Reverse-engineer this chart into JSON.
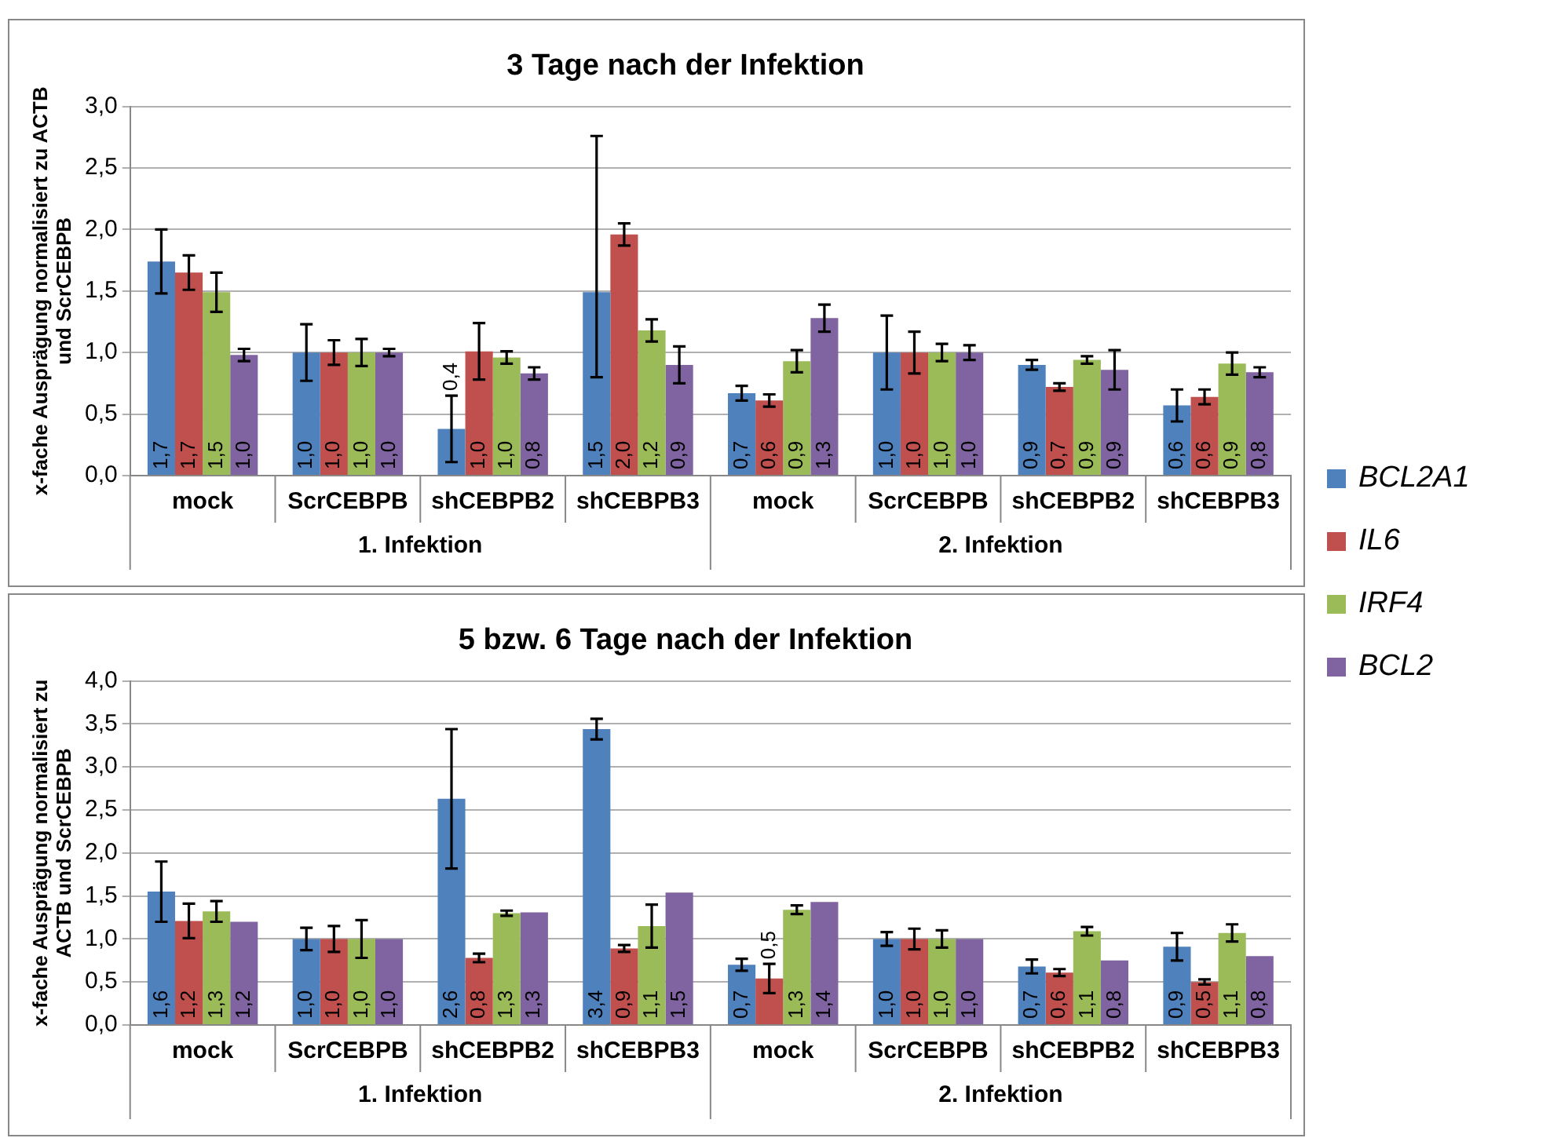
{
  "chart_data": [
    {
      "type": "bar",
      "title": "3 Tage nach der Infektion",
      "ylabel": "x-fache Ausprägung normalisiert zu ACTB und ScrCEBPB",
      "categories": [
        "mock",
        "ScrCEBPB",
        "shCEBPB2",
        "shCEBPB3",
        "mock",
        "ScrCEBPB",
        "shCEBPB2",
        "shCEBPB3"
      ],
      "annotations": [
        "1. Infektion",
        "2. Infektion"
      ],
      "ylim": [
        0,
        3
      ],
      "yticks": [
        {
          "value": 0,
          "label": "0,0"
        },
        {
          "value": 0.5,
          "label": "0,5"
        },
        {
          "value": 1,
          "label": "1,0"
        },
        {
          "value": 1.5,
          "label": "1,5"
        },
        {
          "value": 2,
          "label": "2,0"
        },
        {
          "value": 2.5,
          "label": "2,5"
        },
        {
          "value": 3,
          "label": "3,0"
        }
      ],
      "grid": "y",
      "legend": "right",
      "series": [
        {
          "name": "BCL2A1",
          "color": "#4f81bd",
          "values": [
            1.74,
            1.0,
            0.38,
            1.49,
            0.67,
            1.0,
            0.9,
            0.57
          ],
          "errors": [
            0.26,
            0.23,
            0.27,
            [
              0.8,
              2.76
            ],
            0.06,
            0.3,
            0.04,
            0.13
          ],
          "value_labels": [
            "1,7",
            "1,0",
            "0,4",
            "1,5",
            "0,7",
            "1,0",
            "0,9",
            "0,6"
          ]
        },
        {
          "name": "IL6",
          "color": "#c0504d",
          "values": [
            1.65,
            1.0,
            1.01,
            1.96,
            0.61,
            1.0,
            0.72,
            0.64
          ],
          "errors": [
            0.14,
            0.1,
            0.23,
            0.09,
            0.05,
            0.17,
            0.03,
            0.06
          ],
          "value_labels": [
            "1,7",
            "1,0",
            "1,0",
            "2,0",
            "0,6",
            "1,0",
            "0,7",
            "0,6"
          ]
        },
        {
          "name": "IRF4",
          "color": "#9bbb59",
          "values": [
            1.49,
            1.0,
            0.96,
            1.18,
            0.93,
            1.0,
            0.94,
            0.91
          ],
          "errors": [
            0.16,
            0.11,
            0.05,
            0.09,
            0.09,
            0.07,
            0.03,
            0.09
          ],
          "value_labels": [
            "1,5",
            "1,0",
            "1,0",
            "1,2",
            "0,9",
            "1,0",
            "0,9",
            "0,9"
          ]
        },
        {
          "name": "BCL2",
          "color": "#8064a2",
          "values": [
            0.98,
            1.0,
            0.83,
            0.9,
            1.28,
            1.0,
            0.86,
            0.84
          ],
          "errors": [
            0.05,
            0.03,
            0.05,
            0.15,
            0.11,
            0.06,
            0.16,
            0.04
          ],
          "value_labels": [
            "1,0",
            "1,0",
            "0,8",
            "0,9",
            "1,3",
            "1,0",
            "0,9",
            "0,8"
          ]
        }
      ]
    },
    {
      "type": "bar",
      "title": "5 bzw. 6 Tage nach der Infektion",
      "ylabel": "x-fache Ausprägung normalisiert zu ACTB und ScrCEBPB",
      "categories": [
        "mock",
        "ScrCEBPB",
        "shCEBPB2",
        "shCEBPB3",
        "mock",
        "ScrCEBPB",
        "shCEBPB2",
        "shCEBPB3"
      ],
      "annotations": [
        "1. Infektion",
        "2. Infektion"
      ],
      "ylim": [
        0,
        4
      ],
      "yticks": [
        {
          "value": 0,
          "label": "0,0"
        },
        {
          "value": 0.5,
          "label": "0,5"
        },
        {
          "value": 1,
          "label": "1,0"
        },
        {
          "value": 1.5,
          "label": "1,5"
        },
        {
          "value": 2,
          "label": "2,0"
        },
        {
          "value": 2.5,
          "label": "2,5"
        },
        {
          "value": 3,
          "label": "3,0"
        },
        {
          "value": 3.5,
          "label": "3,5"
        },
        {
          "value": 4,
          "label": "4,0"
        }
      ],
      "grid": "y",
      "series": [
        {
          "color": "#4f81bd",
          "values": [
            1.55,
            1.0,
            2.63,
            3.44,
            0.7,
            1.0,
            0.68,
            0.91
          ],
          "errors": [
            0.35,
            0.13,
            0.81,
            0.12,
            0.07,
            0.08,
            0.08,
            0.16
          ],
          "value_labels": [
            "1,6",
            "1,0",
            "2,6",
            "3,4",
            "0,7",
            "1,0",
            "0,7",
            "0,9"
          ]
        },
        {
          "color": "#c0504d",
          "values": [
            1.21,
            1.0,
            0.78,
            0.89,
            0.54,
            1.0,
            0.61,
            0.5
          ],
          "errors": [
            0.2,
            0.15,
            0.05,
            0.04,
            0.17,
            0.12,
            0.04,
            0.03
          ],
          "value_labels": [
            "1,2",
            "1,0",
            "0,8",
            "0,9",
            "0,5",
            "1,0",
            "0,6",
            "0,5"
          ]
        },
        {
          "color": "#9bbb59",
          "values": [
            1.32,
            1.0,
            1.3,
            1.15,
            1.34,
            1.0,
            1.09,
            1.07
          ],
          "errors": [
            0.12,
            0.22,
            0.03,
            0.25,
            0.05,
            0.1,
            0.05,
            0.1
          ],
          "value_labels": [
            "1,3",
            "1,0",
            "1,3",
            "1,1",
            "1,3",
            "1,0",
            "1,1",
            "1,1"
          ]
        },
        {
          "color": "#8064a2",
          "values": [
            1.2,
            1.0,
            1.31,
            1.54,
            1.43,
            1.0,
            0.75,
            0.8
          ],
          "value_labels": [
            "1,2",
            "1,0",
            "1,3",
            "1,5",
            "1,4",
            "1,0",
            "0,8",
            "0,8"
          ]
        }
      ]
    }
  ]
}
